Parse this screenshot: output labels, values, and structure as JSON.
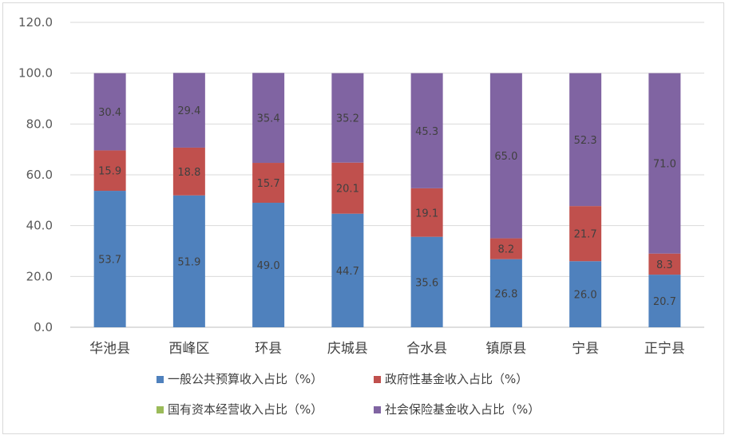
{
  "chart_data": {
    "type": "bar",
    "stacked": true,
    "categories": [
      "华池县",
      "西峰区",
      "环县",
      "庆城县",
      "合水县",
      "镇原县",
      "宁县",
      "正宁县"
    ],
    "series": [
      {
        "name": "一般公共预算收入占比（%）",
        "color": "#4f81bd",
        "values": [
          53.7,
          51.9,
          49.0,
          44.7,
          35.6,
          26.8,
          26.0,
          20.7
        ]
      },
      {
        "name": "政府性基金收入占比（%）",
        "color": "#c0504d",
        "values": [
          15.9,
          18.8,
          15.7,
          20.1,
          19.1,
          8.2,
          21.7,
          8.3
        ]
      },
      {
        "name": "国有资本经营收入占比（%）",
        "color": "#9bbb59",
        "values": [
          0,
          0,
          0,
          0,
          0,
          0,
          0,
          0
        ]
      },
      {
        "name": "社会保险基金收入占比（%）",
        "color": "#8064a2",
        "values": [
          30.4,
          29.4,
          35.4,
          35.2,
          45.3,
          65.0,
          52.3,
          71.0
        ]
      }
    ],
    "yticks": [
      "0.0",
      "20.0",
      "40.0",
      "60.0",
      "80.0",
      "100.0",
      "120.0"
    ],
    "ylim": [
      0,
      120
    ],
    "grid": true,
    "legend_position": "bottom"
  }
}
